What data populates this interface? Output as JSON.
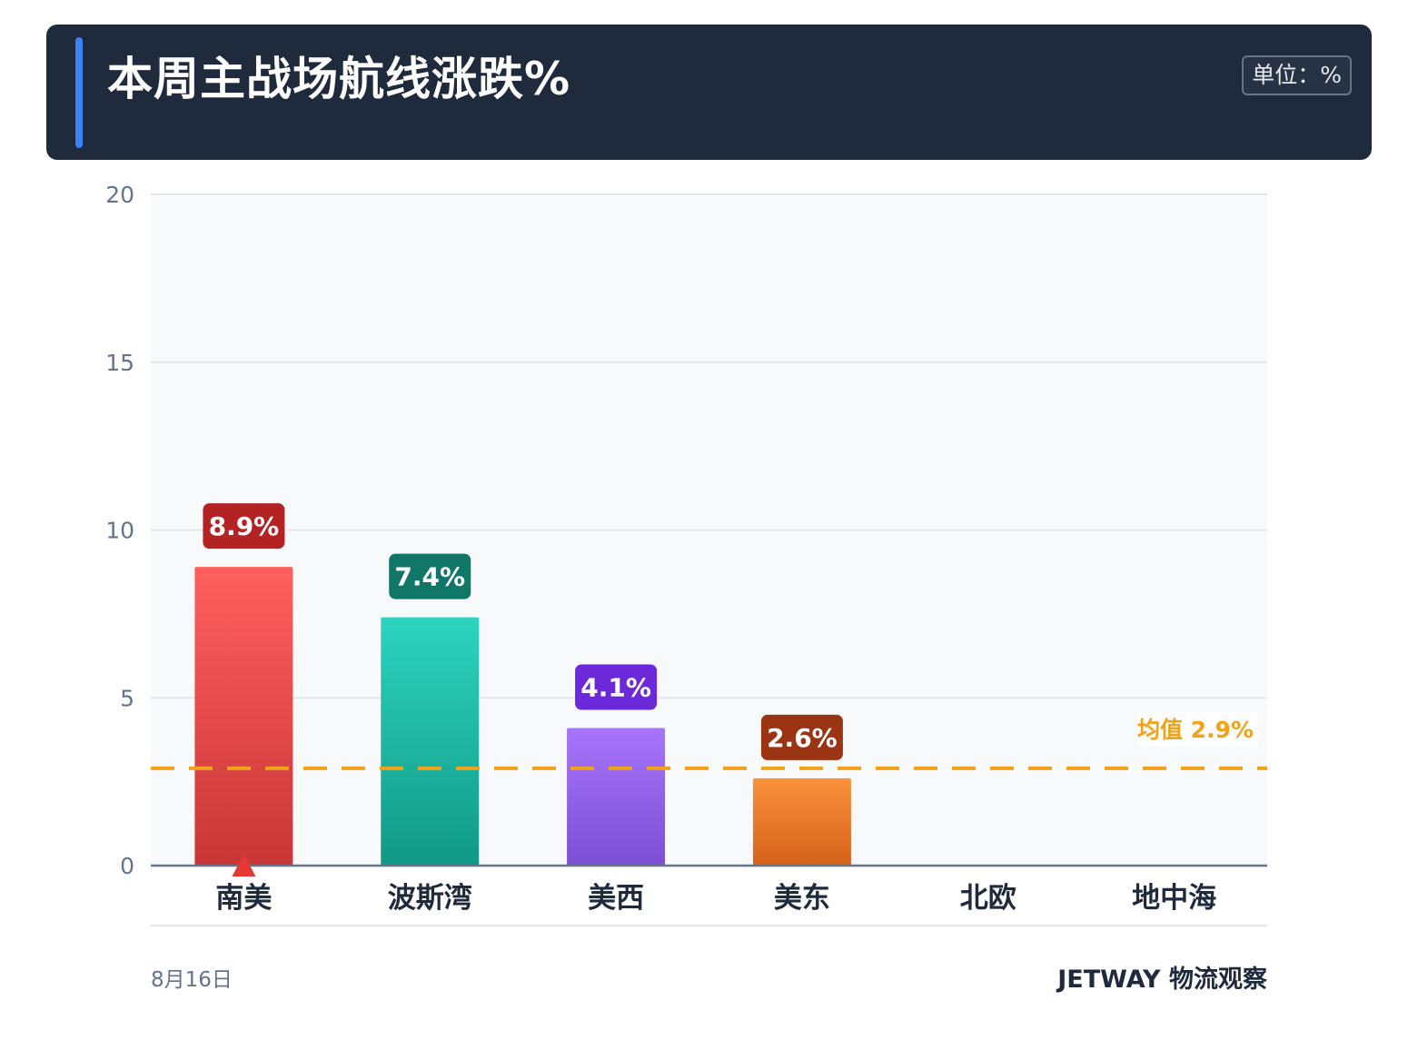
{
  "header": {
    "title": "本周主战场航线涨跌%",
    "unit_label": "单位：",
    "unit_value": "%"
  },
  "footer": {
    "date": "8月16日",
    "brand": "JETWAY 物流观察"
  },
  "colors": {
    "header_bg": "#1f2a3d",
    "accent": "#3b82f6",
    "average_line": "#f0a21b",
    "plot_bg": "#f8f9fb",
    "grid": "#e3e7ed",
    "axis": "#64748b"
  },
  "chart_data": {
    "type": "bar",
    "title": "本周主战场航线涨跌%",
    "xlabel": "",
    "ylabel": "",
    "ylim": [
      0,
      20
    ],
    "yticks": [
      0,
      5,
      10,
      15,
      20
    ],
    "grid": true,
    "categories": [
      "南美",
      "波斯湾",
      "美西",
      "美东",
      "北欧",
      "地中海"
    ],
    "values": [
      8.9,
      7.4,
      4.1,
      2.6,
      null,
      null
    ],
    "value_labels": [
      "8.9%",
      "7.4%",
      "4.1%",
      "2.6%",
      "",
      ""
    ],
    "bar_colors": [
      {
        "top": "#ff5f5f",
        "bottom": "#c93636",
        "label_bg": "#b42323"
      },
      {
        "top": "#2dd4bf",
        "bottom": "#119985",
        "label_bg": "#0f7668"
      },
      {
        "top": "#a775fb",
        "bottom": "#7c4fd4",
        "label_bg": "#6d28d9"
      },
      {
        "top": "#fb923c",
        "bottom": "#d4621a",
        "label_bg": "#9a3412"
      },
      {
        "top": "#cccccc",
        "bottom": "#999999",
        "label_bg": "#666666"
      },
      {
        "top": "#cccccc",
        "bottom": "#999999",
        "label_bg": "#666666"
      }
    ],
    "marker": {
      "category": "南美",
      "shape": "up-triangle",
      "color": "#e53935"
    },
    "average": {
      "value": 2.9,
      "label": "均值 2.9%"
    }
  }
}
